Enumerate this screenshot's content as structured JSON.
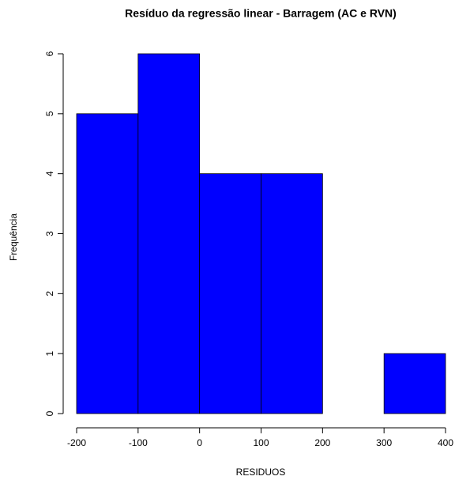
{
  "chart_data": {
    "type": "histogram",
    "title": "Resíduo da regressão linear - Barragem (AC e RVN)",
    "x_label": "RESIDUOS",
    "y_label": "Frequência",
    "bins": [
      -200,
      -100,
      0,
      100,
      200,
      300,
      400
    ],
    "counts": [
      5,
      6,
      4,
      4,
      0,
      1
    ],
    "color": "#0000ff",
    "xlim": [
      -200,
      400
    ],
    "xticks": [
      -200,
      -100,
      0,
      100,
      200,
      300,
      400
    ],
    "ylim": [
      0,
      6
    ],
    "yticks": [
      0,
      1,
      2,
      3,
      4,
      5,
      6
    ]
  }
}
